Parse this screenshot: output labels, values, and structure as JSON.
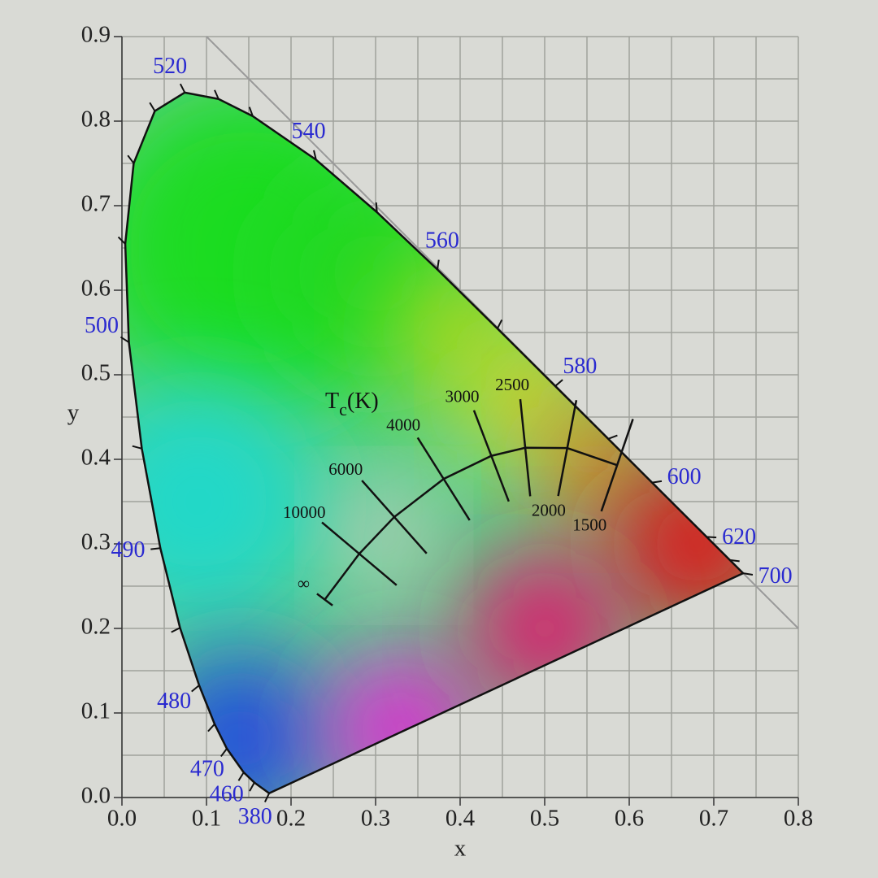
{
  "chart_data": {
    "type": "chromaticity",
    "xlabel": "x",
    "ylabel": "y",
    "xlim": [
      0,
      0.8
    ],
    "ylim": [
      0,
      0.9
    ],
    "xticks": [
      {
        "value": 0,
        "label": "0.0"
      },
      {
        "value": 0.1,
        "label": "0.1"
      },
      {
        "value": 0.2,
        "label": "0.2"
      },
      {
        "value": 0.3,
        "label": "0.3"
      },
      {
        "value": 0.4,
        "label": "0.4"
      },
      {
        "value": 0.5,
        "label": "0.5"
      },
      {
        "value": 0.6,
        "label": "0.6"
      },
      {
        "value": 0.7,
        "label": "0.7"
      },
      {
        "value": 0.8,
        "label": "0.8"
      }
    ],
    "yticks": [
      {
        "value": 0,
        "label": "0.0"
      },
      {
        "value": 0.1,
        "label": "0.1"
      },
      {
        "value": 0.2,
        "label": "0.2"
      },
      {
        "value": 0.3,
        "label": "0.3"
      },
      {
        "value": 0.4,
        "label": "0.4"
      },
      {
        "value": 0.5,
        "label": "0.5"
      },
      {
        "value": 0.6,
        "label": "0.6"
      },
      {
        "value": 0.7,
        "label": "0.7"
      },
      {
        "value": 0.8,
        "label": "0.8"
      },
      {
        "value": 0.9,
        "label": "0.9"
      }
    ],
    "xminor": [
      0.05,
      0.15,
      0.25,
      0.35,
      0.45,
      0.55,
      0.65,
      0.75
    ],
    "yminor": [
      0.05,
      0.15,
      0.25,
      0.35,
      0.45,
      0.55,
      0.65,
      0.75,
      0.85
    ],
    "grid": true,
    "diagonal": {
      "x": [
        0.1,
        0.8
      ],
      "y": [
        0.9,
        0.2
      ]
    },
    "locus": {
      "labels": [
        380,
        null,
        460,
        470,
        null,
        480,
        null,
        490,
        null,
        500,
        null,
        null,
        null,
        520,
        null,
        null,
        540,
        null,
        560,
        null,
        580,
        null,
        600,
        620,
        null,
        700
      ],
      "x": [
        0.1741,
        0.1566,
        0.144,
        0.1241,
        0.1096,
        0.0913,
        0.0687,
        0.0454,
        0.0235,
        0.0082,
        0.0039,
        0.0139,
        0.0389,
        0.0743,
        0.1142,
        0.1547,
        0.2296,
        0.3016,
        0.3731,
        0.4441,
        0.5125,
        0.5752,
        0.627,
        0.6915,
        0.719,
        0.7347
      ],
      "y": [
        0.005,
        0.0177,
        0.0297,
        0.0578,
        0.0868,
        0.1327,
        0.2007,
        0.295,
        0.4127,
        0.5384,
        0.6548,
        0.7502,
        0.812,
        0.8338,
        0.8262,
        0.8059,
        0.7543,
        0.6923,
        0.6245,
        0.5547,
        0.4866,
        0.4242,
        0.3725,
        0.3083,
        0.2809,
        0.2653
      ]
    },
    "planck": {
      "title": {
        "base": "T",
        "sub": "c",
        "unit": "(K)"
      },
      "labels": [
        1500,
        2000,
        2500,
        3000,
        4000,
        6000,
        10000,
        "∞"
      ],
      "x": [
        0.5857,
        0.5267,
        0.477,
        0.4369,
        0.3805,
        0.3221,
        0.2807,
        0.2399
      ],
      "y": [
        0.3931,
        0.4133,
        0.4137,
        0.4041,
        0.3768,
        0.3318,
        0.2883,
        0.2341
      ]
    }
  }
}
